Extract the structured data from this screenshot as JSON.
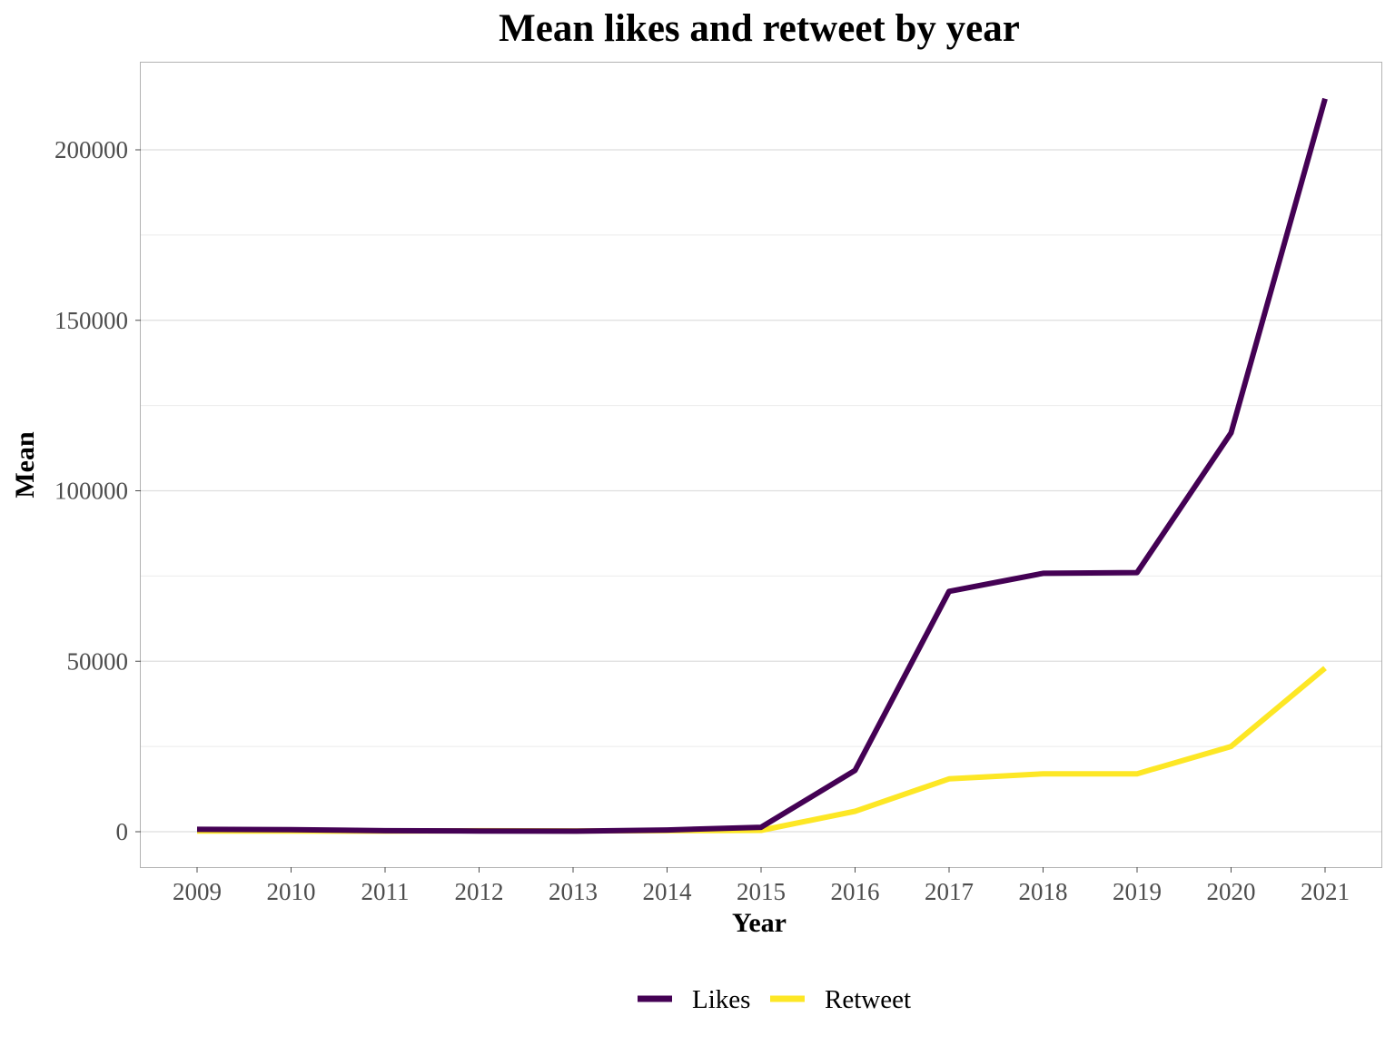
{
  "chart_data": {
    "type": "line",
    "title": "Mean likes and retweet by year",
    "xlabel": "Year",
    "ylabel": "Mean",
    "x": [
      2009,
      2010,
      2011,
      2012,
      2013,
      2014,
      2015,
      2016,
      2017,
      2018,
      2019,
      2020,
      2021
    ],
    "ylim": [
      -10000,
      226000
    ],
    "y_ticks": [
      "0",
      "50000",
      "100000",
      "150000",
      "200000"
    ],
    "y_tick_values": [
      0,
      50000,
      100000,
      150000,
      200000
    ],
    "y_minor_tick_values": [
      25000,
      75000,
      125000,
      175000
    ],
    "grid": true,
    "legend_position": "bottom",
    "series": [
      {
        "name": "Likes",
        "color": "#440154",
        "values": [
          700,
          600,
          300,
          200,
          150,
          500,
          1300,
          18000,
          70500,
          75800,
          76000,
          117000,
          215000
        ]
      },
      {
        "name": "Retweet",
        "color": "#fde725",
        "values": [
          200,
          200,
          150,
          300,
          250,
          300,
          400,
          6000,
          15500,
          17000,
          17000,
          25000,
          48000
        ]
      }
    ]
  }
}
